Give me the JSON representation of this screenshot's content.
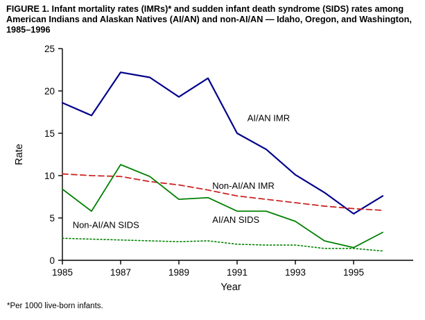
{
  "figure": {
    "title": "FIGURE 1. Infant mortality rates (IMRs)* and sudden infant death syndrome (SIDS) rates among American Indians and Alaskan Natives (AI/AN) and non-AI/AN — Idaho, Oregon, and Washington, 1985–1996",
    "footnote": "*Per 1000 live-born infants."
  },
  "chart_data": {
    "type": "line",
    "title": "",
    "xlabel": "Year",
    "ylabel": "Rate",
    "x": [
      1985,
      1986,
      1987,
      1988,
      1989,
      1990,
      1991,
      1992,
      1993,
      1994,
      1995,
      1996
    ],
    "xticks": [
      1985,
      1987,
      1989,
      1991,
      1993,
      1995
    ],
    "yticks": [
      0,
      5,
      10,
      15,
      20,
      25
    ],
    "xlim": [
      1985,
      1997
    ],
    "ylim": [
      0,
      25
    ],
    "grid": false,
    "legend_position": "inline-annotations",
    "series": [
      {
        "name": "AI/AN IMR",
        "color": "#00008B",
        "style": "solid",
        "values": [
          18.6,
          17.1,
          22.2,
          21.6,
          19.3,
          21.5,
          15.0,
          13.1,
          10.1,
          8.0,
          5.5,
          7.6
        ]
      },
      {
        "name": "Non-AI/AN IMR",
        "color": "#CC2222",
        "style": "dashed",
        "values": [
          10.2,
          10.0,
          9.9,
          9.3,
          8.9,
          8.3,
          7.6,
          7.2,
          6.8,
          6.4,
          6.1,
          5.9
        ]
      },
      {
        "name": "AI/AN SIDS",
        "color": "#008000",
        "style": "solid",
        "values": [
          8.4,
          5.8,
          11.3,
          9.9,
          7.2,
          7.4,
          5.8,
          5.8,
          4.6,
          2.3,
          1.5,
          3.3
        ]
      },
      {
        "name": "Non-AI/AN SIDS",
        "color": "#008000",
        "style": "dotted",
        "values": [
          2.6,
          2.5,
          2.4,
          2.3,
          2.2,
          2.3,
          1.9,
          1.8,
          1.8,
          1.4,
          1.4,
          1.1
        ]
      }
    ],
    "annotations": [
      {
        "text": "AI/AN IMR",
        "x": 1991.35,
        "y": 16.8,
        "color": "#000000"
      },
      {
        "text": "Non-AI/AN IMR",
        "x": 1990.15,
        "y": 8.8,
        "color": "#000000"
      },
      {
        "text": "AI/AN SIDS",
        "x": 1990.15,
        "y": 4.8,
        "color": "#000000"
      },
      {
        "text": "Non-AI/AN SIDS",
        "x": 1985.35,
        "y": 4.2,
        "color": "#000000"
      }
    ]
  }
}
